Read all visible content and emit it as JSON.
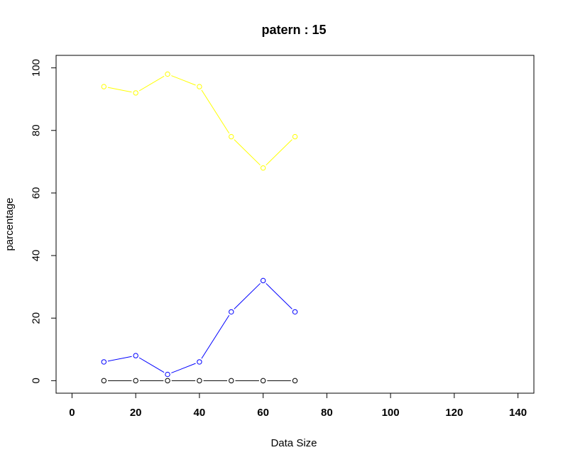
{
  "chart_data": {
    "type": "line",
    "title": "patern :  15",
    "xlabel": "Data Size",
    "ylabel": "parcentage",
    "xlim": [
      -5,
      145
    ],
    "ylim": [
      -4,
      104
    ],
    "x_ticks": [
      0,
      20,
      40,
      60,
      80,
      100,
      120,
      140
    ],
    "y_ticks": [
      0,
      20,
      40,
      60,
      80,
      100
    ],
    "x": [
      10,
      20,
      30,
      40,
      50,
      60,
      70
    ],
    "series": [
      {
        "color": "#FFFF00",
        "values": [
          94,
          92,
          98,
          94,
          78,
          68,
          78
        ]
      },
      {
        "color": "#0000FF",
        "values": [
          6,
          8,
          2,
          6,
          22,
          32,
          22
        ]
      },
      {
        "color": "#000000",
        "values": [
          0,
          0,
          0,
          0,
          0,
          0,
          0
        ]
      }
    ],
    "grid": false,
    "legend": false
  }
}
